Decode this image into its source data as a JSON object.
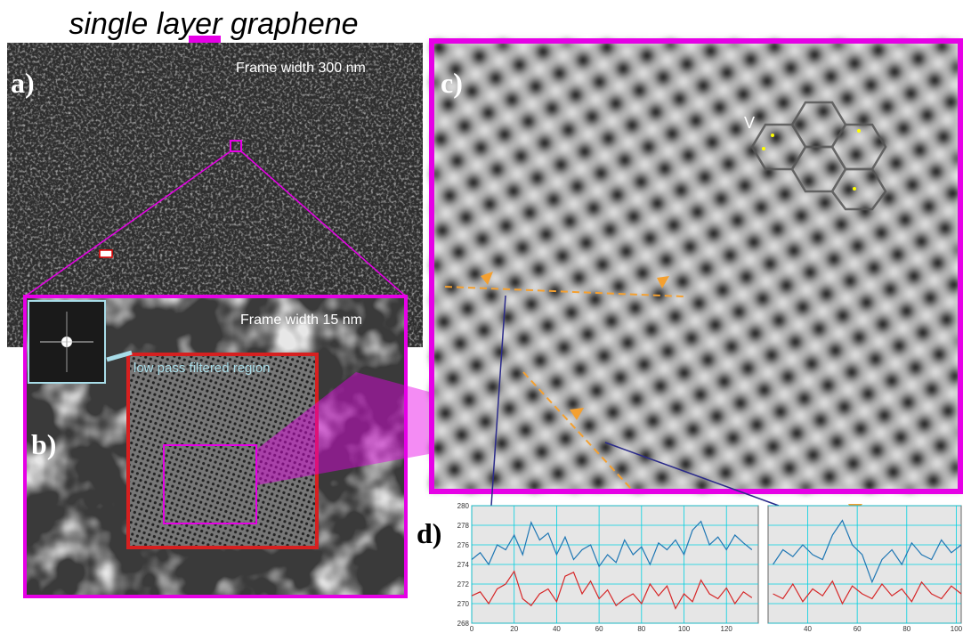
{
  "title": "single layer graphene",
  "panels": {
    "a": {
      "label": "a)",
      "annotation": "Frame width 300 nm"
    },
    "b": {
      "label": "b)",
      "annotation": "Frame width 15 nm",
      "inset_label": "low pass filtered region"
    },
    "c": {
      "label": "c)",
      "annotation": "V"
    },
    "d": {
      "label": "d)"
    }
  },
  "chart_data": [
    {
      "type": "line",
      "x": [
        0,
        4,
        8,
        12,
        16,
        20,
        24,
        28,
        32,
        36,
        40,
        44,
        48,
        52,
        56,
        60,
        64,
        68,
        72,
        76,
        80,
        84,
        88,
        92,
        96,
        100,
        104,
        108,
        112,
        116,
        120,
        124,
        128,
        132
      ],
      "series": [
        {
          "color": "#1f77b4",
          "values": [
            274.5,
            275.2,
            274,
            276,
            275.5,
            277,
            275,
            278.3,
            276.5,
            277.2,
            275,
            276.8,
            274.5,
            275.5,
            276,
            273.8,
            275,
            274.2,
            276.5,
            275,
            275.8,
            274,
            276.2,
            275.5,
            276.5,
            275,
            277.5,
            278.4,
            276,
            276.8,
            275.5,
            277,
            276.2,
            275.5
          ]
        },
        {
          "color": "#d62728",
          "values": [
            270.8,
            271.2,
            270,
            271.5,
            272,
            273.3,
            270.5,
            269.8,
            271,
            271.5,
            270.2,
            272.8,
            273.2,
            271,
            272.3,
            270.5,
            271.4,
            269.8,
            270.5,
            271,
            270,
            272,
            270.8,
            271.8,
            269.5,
            271,
            270.2,
            272.4,
            271,
            270.5,
            271.6,
            270,
            271.2,
            270.6
          ]
        }
      ],
      "xlim": [
        0,
        135
      ],
      "ylim": [
        268,
        280
      ],
      "xticks": [
        0,
        20,
        40,
        60,
        80,
        100,
        120
      ],
      "yticks": [
        268,
        270,
        272,
        274,
        276,
        278,
        280
      ],
      "show_ytick_labels": true,
      "grid": true
    },
    {
      "type": "line",
      "x": [
        26,
        30,
        34,
        38,
        42,
        46,
        50,
        54,
        58,
        62,
        66,
        70,
        74,
        78,
        82,
        86,
        90,
        94,
        98,
        102
      ],
      "series": [
        {
          "color": "#1f77b4",
          "values": [
            274,
            275.5,
            274.8,
            276,
            275,
            274.5,
            277,
            278.5,
            276,
            275,
            272.2,
            274.5,
            275.5,
            274,
            276.2,
            275,
            274.5,
            276.5,
            275.2,
            276
          ]
        },
        {
          "color": "#d62728",
          "values": [
            271,
            270.5,
            272,
            270.2,
            271.5,
            270.8,
            272.3,
            270,
            271.8,
            271,
            270.5,
            272,
            270.8,
            271.5,
            270.2,
            272.2,
            271,
            270.5,
            271.8,
            271
          ]
        }
      ],
      "xlim": [
        24,
        102
      ],
      "ylim": [
        268,
        280
      ],
      "xticks": [
        40,
        60,
        80,
        100
      ],
      "yticks": [
        268,
        270,
        272,
        274,
        276,
        278,
        280
      ],
      "show_ytick_labels": false,
      "grid": true
    }
  ]
}
